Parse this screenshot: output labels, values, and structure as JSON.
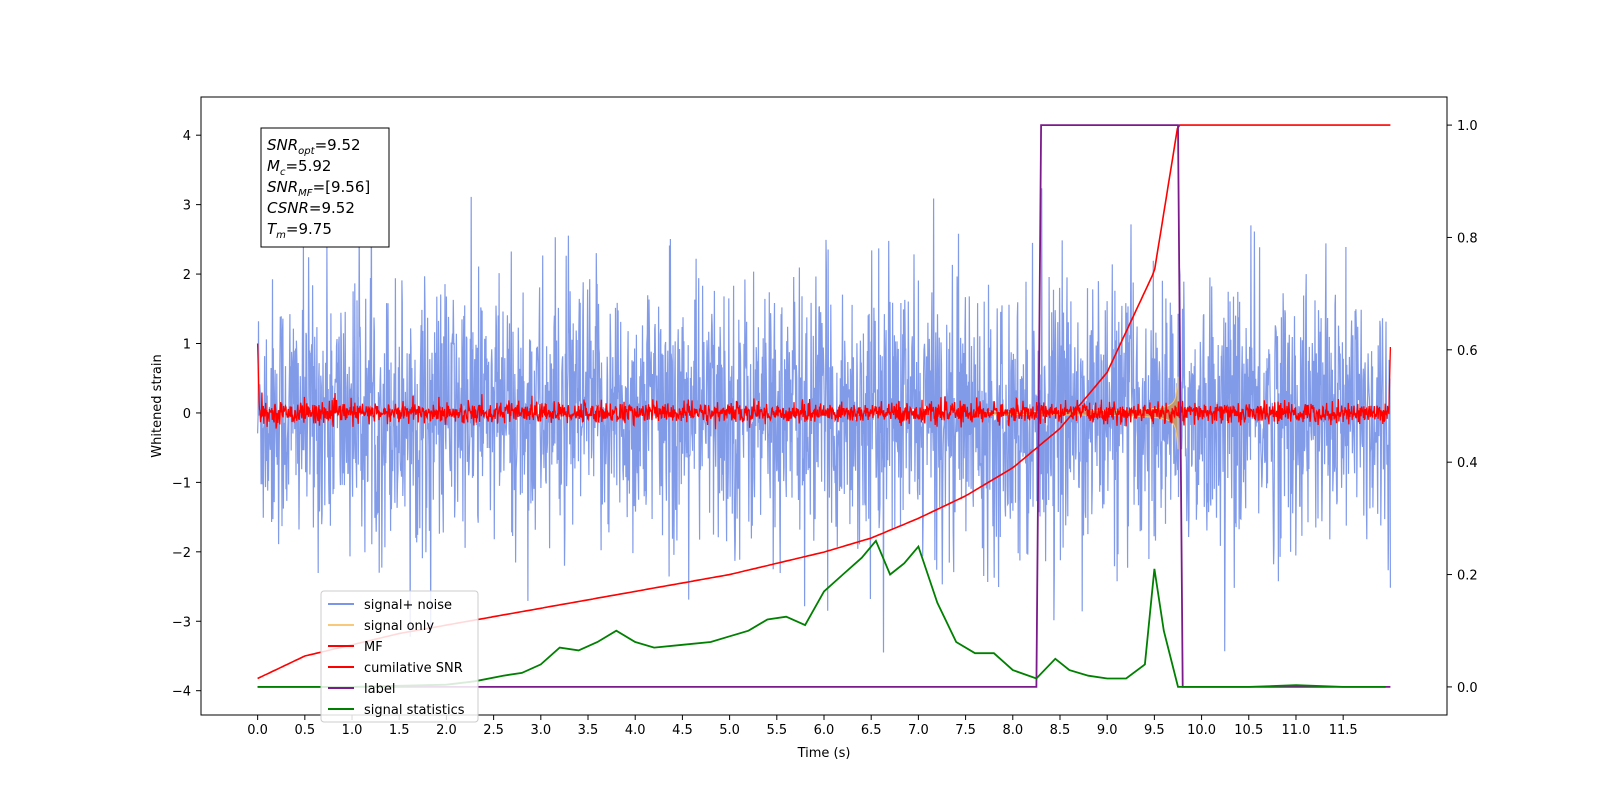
{
  "chart_data": {
    "type": "line",
    "xlabel": "Time (s)",
    "ylabel_left": "Whitened strain",
    "ylabel_right": "",
    "xlim": [
      -0.6,
      12.6
    ],
    "ylim_left": [
      -4.35,
      4.55
    ],
    "ylim_right": [
      -0.05,
      1.05
    ],
    "xticks": [
      "0.0",
      "0.5",
      "1.0",
      "1.5",
      "2.0",
      "2.5",
      "3.0",
      "3.5",
      "4.0",
      "4.5",
      "5.0",
      "5.5",
      "6.0",
      "6.5",
      "7.0",
      "7.5",
      "8.0",
      "8.5",
      "9.0",
      "9.5",
      "10.0",
      "10.5",
      "11.0",
      "11.5"
    ],
    "yticks_left": [
      "4",
      "3",
      "2",
      "1",
      "0",
      "−1",
      "−2",
      "−3",
      "−4"
    ],
    "yticks_right": [
      "1.0",
      "0.8",
      "0.6",
      "0.4",
      "0.2",
      "0.0"
    ],
    "grid": false,
    "legend_location": "lower-left",
    "info_box": {
      "lines": [
        {
          "main": "SNR",
          "sub": "opt",
          "value": "=9.52"
        },
        {
          "main": "M",
          "sub": "c",
          "value": "=5.92"
        },
        {
          "main": "SNR",
          "sub": "MF",
          "value": "=[9.56]"
        },
        {
          "main": "CSNR",
          "sub": "",
          "value": "=9.52"
        },
        {
          "main": "T",
          "sub": "m",
          "value": "=9.75"
        }
      ]
    },
    "series": [
      {
        "name": "signal+ noise",
        "color": "#7b96e8",
        "axis": "left",
        "description_range": [
          -2.3,
          3.7
        ],
        "x_range": [
          0.0,
          12.0
        ]
      },
      {
        "name": "signal only",
        "color": "#f8c97a",
        "axis": "left",
        "x_range": [
          0.0,
          9.75
        ],
        "peak_amplitude": 0.95
      },
      {
        "name": "MF",
        "color": "#ff0000",
        "axis": "left",
        "x_range": [
          0.0,
          12.0
        ]
      },
      {
        "name": "cumilative SNR",
        "color": "#ff0000",
        "axis": "right",
        "x": [
          0.0,
          0.5,
          1.0,
          1.5,
          2.0,
          2.5,
          3.0,
          3.5,
          4.0,
          4.5,
          5.0,
          5.5,
          6.0,
          6.5,
          7.0,
          7.5,
          8.0,
          8.5,
          9.0,
          9.5,
          9.75,
          12.0
        ],
        "y": [
          0.015,
          0.055,
          0.075,
          0.095,
          0.11,
          0.125,
          0.14,
          0.155,
          0.17,
          0.185,
          0.2,
          0.22,
          0.24,
          0.265,
          0.3,
          0.34,
          0.39,
          0.46,
          0.56,
          0.74,
          1.0,
          1.0
        ]
      },
      {
        "name": "label",
        "color": "#7b1a8a",
        "axis": "right",
        "x": [
          0.0,
          8.25,
          8.3,
          9.75,
          9.8,
          12.0
        ],
        "y": [
          0.0,
          0.0,
          1.0,
          1.0,
          0.0,
          0.0
        ]
      },
      {
        "name": "signal statistics",
        "color": "#008000",
        "axis": "right",
        "x": [
          0.0,
          0.5,
          1.0,
          1.5,
          2.0,
          2.3,
          2.6,
          2.8,
          3.0,
          3.2,
          3.4,
          3.6,
          3.8,
          4.0,
          4.2,
          4.5,
          4.8,
          5.0,
          5.2,
          5.4,
          5.6,
          5.8,
          6.0,
          6.2,
          6.4,
          6.55,
          6.7,
          6.85,
          7.0,
          7.2,
          7.4,
          7.6,
          7.8,
          8.0,
          8.25,
          8.45,
          8.6,
          8.8,
          9.0,
          9.2,
          9.4,
          9.5,
          9.6,
          9.75,
          10.0,
          10.5,
          11.0,
          11.5,
          11.95
        ],
        "y": [
          0.0,
          0.0,
          0.0,
          0.002,
          0.004,
          0.01,
          0.02,
          0.025,
          0.04,
          0.07,
          0.065,
          0.08,
          0.1,
          0.08,
          0.07,
          0.075,
          0.08,
          0.09,
          0.1,
          0.12,
          0.125,
          0.11,
          0.17,
          0.2,
          0.23,
          0.26,
          0.2,
          0.22,
          0.25,
          0.15,
          0.08,
          0.06,
          0.06,
          0.03,
          0.015,
          0.05,
          0.03,
          0.02,
          0.015,
          0.015,
          0.04,
          0.21,
          0.1,
          0.0,
          0.0,
          0.0,
          0.003,
          0.0,
          0.0
        ]
      }
    ]
  }
}
